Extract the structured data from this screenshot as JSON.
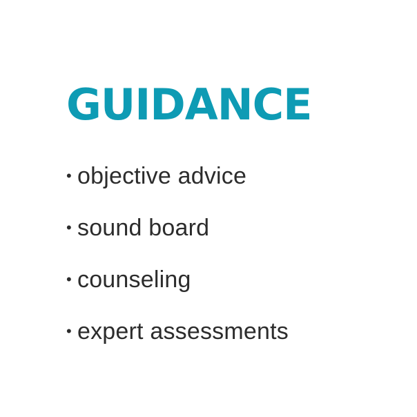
{
  "heading": "GUIDANCE",
  "bullet_glyph": "•",
  "items": [
    "objective advice",
    "sound board",
    "counseling",
    "expert assessments"
  ],
  "colors": {
    "heading": "#0e9bb4",
    "text": "#2c2c2c",
    "background": "#ffffff"
  }
}
